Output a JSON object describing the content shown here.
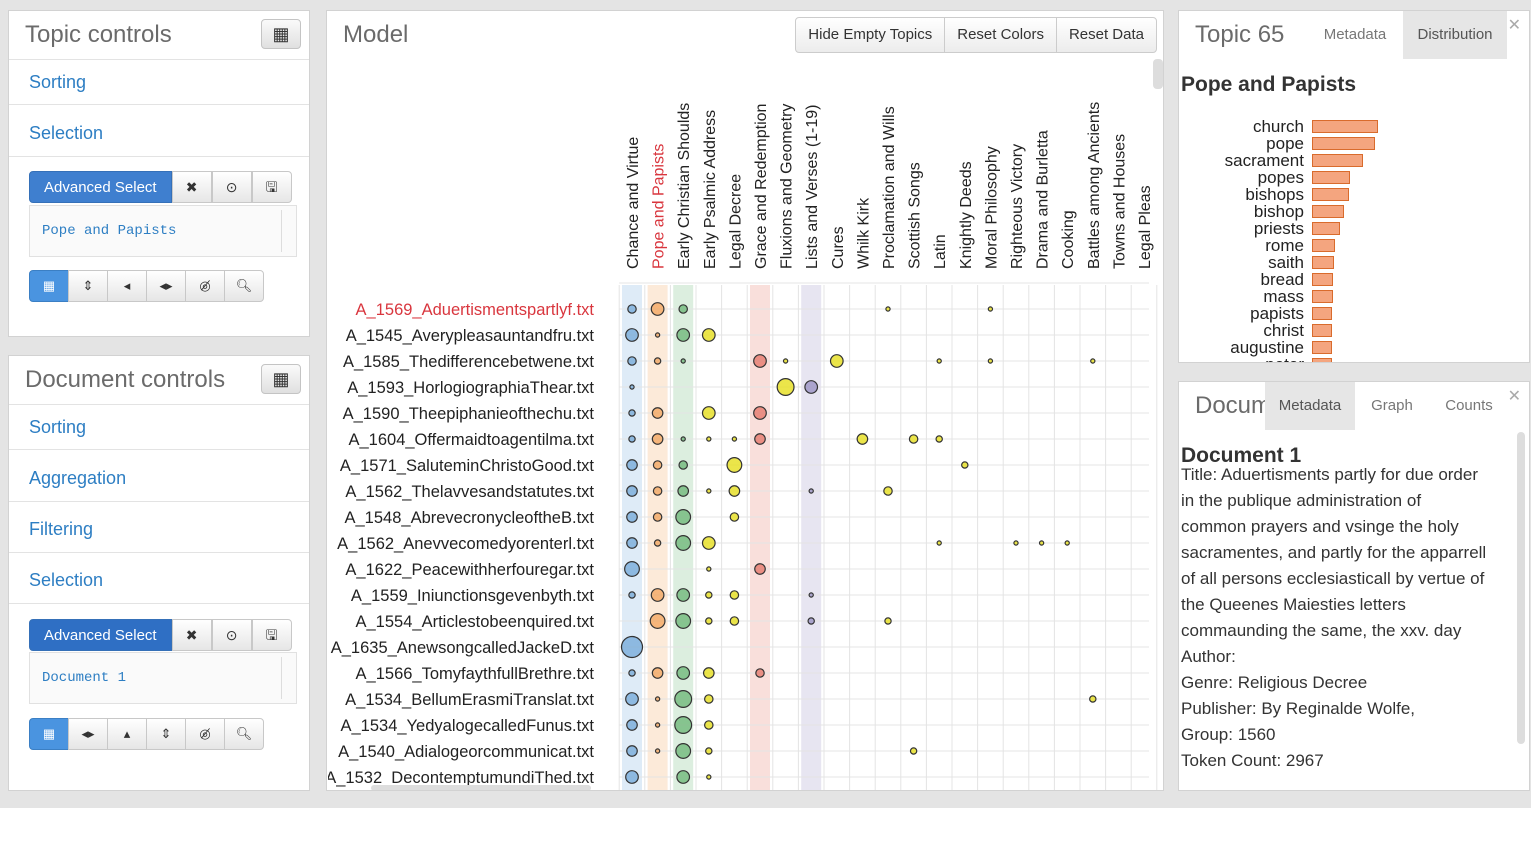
{
  "topic_controls": {
    "title": "Topic controls",
    "grid_icon": "grid-icon",
    "sorting_label": "Sorting",
    "selection_label": "Selection",
    "advanced_select_label": "Advanced Select",
    "selection_value": "Pope and Papists",
    "toolbar_icons": [
      "grid-icon",
      "sort-vertical-icon",
      "arrow-left-icon",
      "arrows-horizontal-icon",
      "eye-slash-icon",
      "zoom-icon"
    ]
  },
  "document_controls": {
    "title": "Document controls",
    "grid_icon": "grid-icon",
    "sorting_label": "Sorting",
    "aggregation_label": "Aggregation",
    "filtering_label": "Filtering",
    "selection_label": "Selection",
    "advanced_select_label": "Advanced Select",
    "selection_value": "Document 1",
    "toolbar_icons": [
      "grid-icon",
      "arrows-horizontal-icon",
      "arrow-up-icon",
      "sort-vertical-icon",
      "eye-slash-icon",
      "zoom-icon"
    ]
  },
  "model": {
    "title": "Model",
    "buttons": [
      "Hide Empty Topics",
      "Reset Colors",
      "Reset Data"
    ],
    "topics": [
      "Chance and Virtue",
      "Pope and Papists",
      "Early Christian Shoulds",
      "Early Psalmic Address",
      "Legal Decree",
      "Grace and Redemption",
      "Fluxions and Geometry",
      "Lists and Verses (1-19)",
      "Cures",
      "Whilk Kirk",
      "Proclamation and Wills",
      "Scottish Songs",
      "Latin",
      "Knightly Deeds",
      "Moral Philosophy",
      "Righteous Victory",
      "Drama and Burletta",
      "Cooking",
      "Battles among Ancients",
      "Towns and Houses",
      "Legal Pleas"
    ],
    "selected_topic_index": 1,
    "documents": [
      "A_1569_Aduertismentspartlyf.txt",
      "A_1545_Averypleasauntandfru.txt",
      "A_1585_Thedifferencebetwene.txt",
      "A_1593_HorlogiographiaThear.txt",
      "A_1590_Theepiphanieofthechu.txt",
      "A_1604_Offermaidtoagentilma.txt",
      "A_1571_SaluteminChristoGood.txt",
      "A_1562_Thelavvesandstatutes.txt",
      "A_1548_AbrevecronycleoftheB.txt",
      "A_1562_Anevvecomedyorenterl.txt",
      "A_1622_Peacewithherfouregar.txt",
      "A_1559_Iniunctionsgevenbyth.txt",
      "A_1554_Articlestobeenquired.txt",
      "A_1635_AnewsongcalledJackeD.txt",
      "A_1566_TomyfaythfullBrethre.txt",
      "A_1534_BellumErasmiTranslat.txt",
      "A_1534_YedyalogecalledFunus.txt",
      "A_1540_Adialogeorcommunicat.txt",
      "A_1532_DecontemptumundiThed.txt"
    ],
    "selected_document_index": 0,
    "cells": [
      [
        [
          0,
          2
        ],
        [
          1,
          3
        ],
        [
          2,
          2
        ],
        [
          10,
          1
        ],
        [
          14,
          1
        ]
      ],
      [
        [
          0,
          3
        ],
        [
          1,
          1
        ],
        [
          2,
          3
        ],
        [
          3,
          3
        ]
      ],
      [
        [
          0,
          2
        ],
        [
          1,
          1.5
        ],
        [
          2,
          1
        ],
        [
          5,
          3
        ],
        [
          6,
          1
        ],
        [
          8,
          3
        ],
        [
          12,
          1
        ],
        [
          14,
          1
        ],
        [
          18,
          1
        ]
      ],
      [
        [
          0,
          1
        ],
        [
          6,
          4
        ],
        [
          7,
          3
        ]
      ],
      [
        [
          0,
          1.5
        ],
        [
          1,
          2.5
        ],
        [
          3,
          3
        ],
        [
          5,
          3
        ]
      ],
      [
        [
          0,
          1.5
        ],
        [
          1,
          2.5
        ],
        [
          2,
          1
        ],
        [
          3,
          1
        ],
        [
          4,
          1
        ],
        [
          5,
          2.5
        ],
        [
          9,
          2.5
        ],
        [
          11,
          2
        ],
        [
          12,
          1.5
        ]
      ],
      [
        [
          0,
          2.5
        ],
        [
          1,
          2
        ],
        [
          2,
          2
        ],
        [
          4,
          3.5
        ],
        [
          13,
          1.5
        ]
      ],
      [
        [
          0,
          2.5
        ],
        [
          1,
          2
        ],
        [
          2,
          2.5
        ],
        [
          3,
          1
        ],
        [
          4,
          2.5
        ],
        [
          7,
          1
        ],
        [
          10,
          2
        ]
      ],
      [
        [
          0,
          2.5
        ],
        [
          1,
          2
        ],
        [
          2,
          3.5
        ],
        [
          4,
          2
        ]
      ],
      [
        [
          0,
          2.5
        ],
        [
          1,
          1.5
        ],
        [
          2,
          3.5
        ],
        [
          3,
          3
        ],
        [
          12,
          1
        ],
        [
          15,
          1
        ],
        [
          16,
          1
        ],
        [
          17,
          1
        ]
      ],
      [
        [
          0,
          3.5
        ],
        [
          3,
          1
        ],
        [
          5,
          2.5
        ]
      ],
      [
        [
          0,
          1.5
        ],
        [
          1,
          3
        ],
        [
          2,
          3
        ],
        [
          3,
          1.5
        ],
        [
          4,
          2
        ],
        [
          7,
          1
        ]
      ],
      [
        [
          1,
          3.5
        ],
        [
          2,
          3.5
        ],
        [
          3,
          1.5
        ],
        [
          4,
          2
        ],
        [
          7,
          1.5
        ],
        [
          10,
          1.5
        ]
      ],
      [
        [
          0,
          5
        ]
      ],
      [
        [
          0,
          1.5
        ],
        [
          1,
          2.5
        ],
        [
          2,
          3
        ],
        [
          3,
          2.5
        ],
        [
          5,
          2
        ]
      ],
      [
        [
          0,
          3
        ],
        [
          1,
          1
        ],
        [
          2,
          4
        ],
        [
          3,
          2
        ],
        [
          18,
          1.5
        ]
      ],
      [
        [
          0,
          2.5
        ],
        [
          1,
          1
        ],
        [
          2,
          4
        ],
        [
          3,
          2
        ]
      ],
      [
        [
          0,
          2.5
        ],
        [
          1,
          1
        ],
        [
          2,
          3.5
        ],
        [
          3,
          1.5
        ],
        [
          11,
          1.5
        ]
      ],
      [
        [
          0,
          3
        ],
        [
          2,
          3
        ],
        [
          3,
          1
        ]
      ]
    ],
    "topic_colors": {
      "0": "#4a90d0",
      "1": "#f0892c",
      "2": "#3fa34d",
      "5": "#e04b3a",
      "7": "#7a6fb0"
    },
    "default_color": "#e8e02a"
  },
  "topic_panel": {
    "title": "Topic 65",
    "tabs": [
      "Metadata",
      "Distribution"
    ],
    "active_tab": "Distribution",
    "heading": "Pope and Papists",
    "terms": [
      "church",
      "pope",
      "sacrament",
      "popes",
      "bishops",
      "bishop",
      "priests",
      "rome",
      "saith",
      "bread",
      "mass",
      "papists",
      "christ",
      "augustine",
      "peter"
    ],
    "weights": [
      1.0,
      0.96,
      0.77,
      0.58,
      0.56,
      0.48,
      0.42,
      0.35,
      0.33,
      0.32,
      0.32,
      0.31,
      0.3,
      0.3,
      0.3
    ]
  },
  "document_panel": {
    "title": "Document",
    "tabs": [
      "Metadata",
      "Graph",
      "Counts"
    ],
    "active_tab": "Metadata",
    "heading": "Document 1",
    "lines": [
      "Title: Aduertisments partly for due order",
      "in the publique administration of",
      "common prayers and vsinge the holy",
      "sacramentes, and partly for the apparrell",
      "of all persons ecclesiasticall by vertue of",
      "the Queenes Maiesties letters",
      "commaunding the same, the xxv. day",
      "Author:",
      "Genre: Religious Decree",
      "Publisher: By Reginalde Wolfe,",
      "Group: 1560",
      "Token Count: 2967"
    ]
  }
}
